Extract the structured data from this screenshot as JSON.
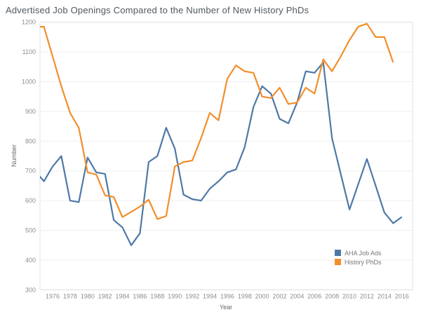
{
  "title": "Advertised Job Openings Compared to the Number of New History PhDs",
  "colors": {
    "job_ads": "#4e79a7",
    "phds": "#f28e2b",
    "grid": "#efefef",
    "border": "#e2e2e2",
    "tick_text": "#8e8e8e",
    "axis_title_text": "#666666"
  },
  "legend": {
    "items": [
      {
        "label": "AHA Job Ads",
        "color": "#4e79a7"
      },
      {
        "label": "History PhDs",
        "color": "#f28e2b"
      }
    ]
  },
  "chart_data": {
    "type": "line",
    "title": "Advertised Job Openings Compared to the Number of New History PhDs",
    "xlabel": "Year",
    "ylabel": "Number",
    "x": [
      1974,
      1975,
      1976,
      1977,
      1978,
      1979,
      1980,
      1981,
      1982,
      1983,
      1984,
      1985,
      1986,
      1987,
      1988,
      1989,
      1990,
      1991,
      1992,
      1993,
      1994,
      1995,
      1996,
      1997,
      1998,
      1999,
      2000,
      2001,
      2002,
      2003,
      2004,
      2005,
      2006,
      2007,
      2008,
      2009,
      2010,
      2011,
      2012,
      2013,
      2014,
      2015,
      2016
    ],
    "series": [
      {
        "name": "AHA Job Ads",
        "color": "#4e79a7",
        "values": [
          700,
          665,
          715,
          750,
          600,
          595,
          745,
          695,
          690,
          535,
          510,
          450,
          490,
          730,
          750,
          845,
          775,
          620,
          605,
          600,
          640,
          665,
          695,
          705,
          780,
          915,
          985,
          960,
          875,
          860,
          930,
          1035,
          1030,
          1065,
          810,
          690,
          570,
          655,
          740,
          650,
          560,
          524,
          545
        ]
      },
      {
        "name": "History PhDs",
        "color": "#f28e2b",
        "values": [
          1185,
          1185,
          1085,
          985,
          895,
          845,
          695,
          688,
          618,
          612,
          545,
          562,
          580,
          603,
          538,
          548,
          715,
          730,
          735,
          810,
          895,
          870,
          1010,
          1055,
          1035,
          1030,
          950,
          945,
          980,
          925,
          930,
          980,
          960,
          1075,
          1035,
          1085,
          1140,
          1185,
          1195,
          1150,
          1150,
          1065,
          null
        ]
      }
    ],
    "ylim": [
      300,
      1200
    ],
    "yticks": [
      300,
      400,
      500,
      600,
      700,
      800,
      900,
      1000,
      1100,
      1200
    ],
    "xticks": [
      1976,
      1978,
      1980,
      1982,
      1984,
      1986,
      1988,
      1990,
      1992,
      1994,
      1996,
      1998,
      2000,
      2002,
      2004,
      2006,
      2008,
      2010,
      2012,
      2014,
      2016
    ],
    "grid": "horizontal",
    "legend_position": "inside-bottom-right"
  }
}
